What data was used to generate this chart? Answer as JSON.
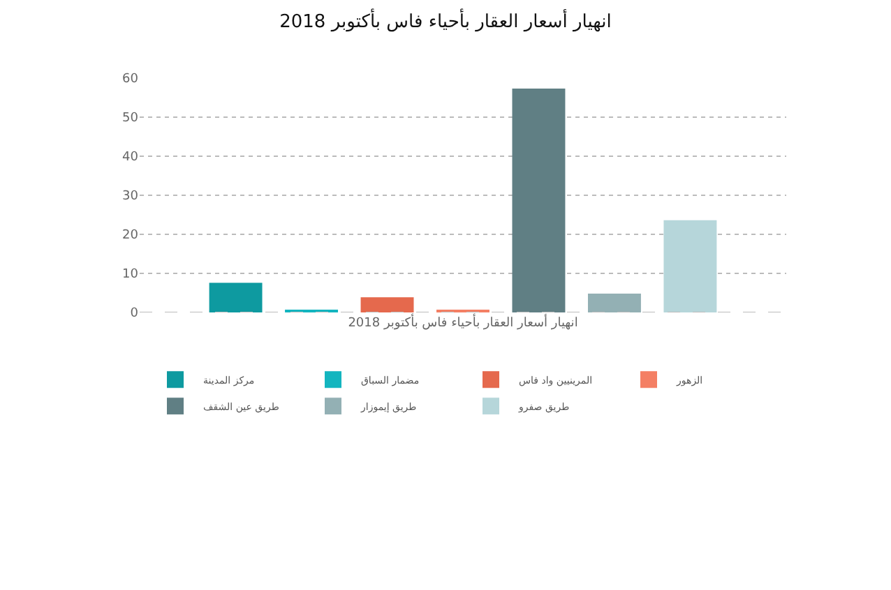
{
  "chart_data": {
    "type": "bar",
    "title": "انهيار أسعار العقار بأحياء فاس بأكتوبر 2018",
    "categories": [
      "انهيار أسعار العقار بأحياء فاس بأكتوبر 2018"
    ],
    "series": [
      {
        "name": "مركز المدينة",
        "color": "#0e9aa0",
        "values": [
          7.6
        ]
      },
      {
        "name": "مضمار السباق",
        "color": "#13b5bf",
        "values": [
          0.4
        ]
      },
      {
        "name": "المرينيين واد فاس",
        "color": "#e5694d",
        "values": [
          3.9
        ]
      },
      {
        "name": "الزهور",
        "color": "#f47f64",
        "values": [
          0.6
        ]
      },
      {
        "name": "طريق عين الشقف",
        "color": "#607f84",
        "values": [
          57.3
        ]
      },
      {
        "name": "طريق إيموزار",
        "color": "#93b0b4",
        "values": [
          4.8
        ]
      },
      {
        "name": "طريق صفرو",
        "color": "#b6d6da",
        "values": [
          23.6
        ]
      }
    ],
    "ylim": [
      0,
      60
    ],
    "yticks": [
      0,
      10,
      20,
      30,
      40,
      50,
      60
    ],
    "grid": "y",
    "legend": "bottom"
  }
}
